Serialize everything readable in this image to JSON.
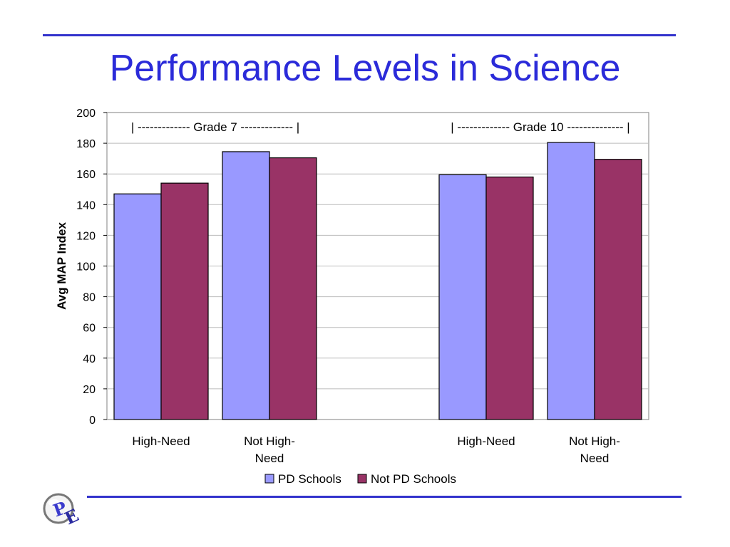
{
  "slide": {
    "title": "Performance Levels in Science",
    "accent_color": "#3333cc",
    "logo_icon": "pe-logo-icon"
  },
  "chart_data": {
    "type": "bar",
    "ylabel": "Avg MAP Index",
    "ylim": [
      0,
      200
    ],
    "yticks": [
      0,
      20,
      40,
      60,
      80,
      100,
      120,
      140,
      160,
      180,
      200
    ],
    "grid": true,
    "legend_position": "bottom",
    "groups": [
      {
        "label": "| -------------   Grade 7    ------------- |",
        "categories": [
          "High-Need",
          "Not High-\nNeed"
        ]
      },
      {
        "label": "| -------------   Grade 10    -------------- |",
        "categories": [
          "High-Need",
          "Not High-\nNeed"
        ]
      }
    ],
    "series": [
      {
        "name": "PD Schools",
        "color": "#9999ff",
        "values": [
          147,
          174.5,
          159.5,
          180.5
        ]
      },
      {
        "name": "Not PD Schools",
        "color": "#993366",
        "values": [
          154,
          170.5,
          158,
          169.5
        ]
      }
    ]
  }
}
